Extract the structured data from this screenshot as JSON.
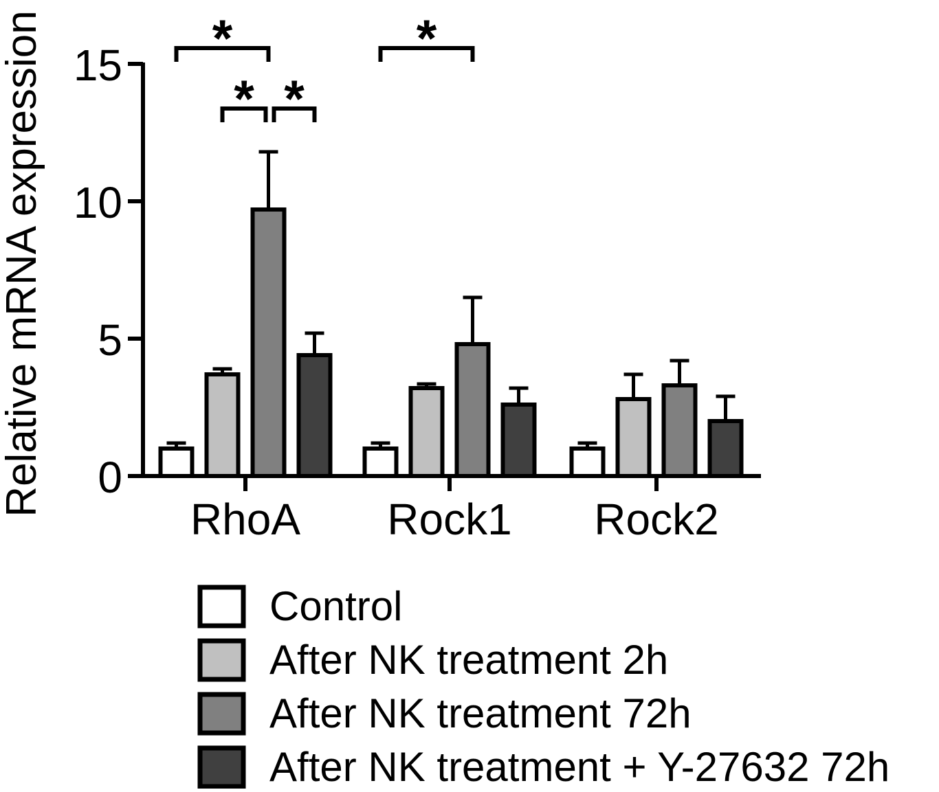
{
  "chart_data": {
    "type": "bar",
    "title": "",
    "xlabel": "",
    "ylabel": "Relative mRNA expression",
    "ylim": [
      0,
      15
    ],
    "yticks": [
      0,
      5,
      10,
      15
    ],
    "grid": false,
    "legend_position": "bottom",
    "categories": [
      "RhoA",
      "Rock1",
      "Rock2"
    ],
    "series": [
      {
        "name": "Control",
        "color": "#ffffff",
        "values": [
          1.0,
          1.0,
          1.0
        ],
        "errors": [
          0.2,
          0.2,
          0.2
        ]
      },
      {
        "name": "After NK treatment 2h",
        "color": "#c0c0c0",
        "values": [
          3.7,
          3.2,
          2.8
        ],
        "errors": [
          0.2,
          0.15,
          0.9
        ]
      },
      {
        "name": "After NK treatment 72h",
        "color": "#808080",
        "values": [
          9.7,
          4.8,
          3.3
        ],
        "errors": [
          2.1,
          1.7,
          0.9
        ]
      },
      {
        "name": "After NK treatment + Y-27632 72h",
        "color": "#404040",
        "values": [
          4.4,
          2.6,
          2.0
        ],
        "errors": [
          0.8,
          0.6,
          0.9
        ]
      }
    ],
    "significance": [
      {
        "category": 0,
        "from_series": 0,
        "to_series": 2,
        "label": "*"
      },
      {
        "category": 0,
        "from_series": 1,
        "to_series": 2,
        "label": "*"
      },
      {
        "category": 0,
        "from_series": 2,
        "to_series": 3,
        "label": "*"
      },
      {
        "category": 1,
        "from_series": 0,
        "to_series": 2,
        "label": "*"
      }
    ]
  }
}
